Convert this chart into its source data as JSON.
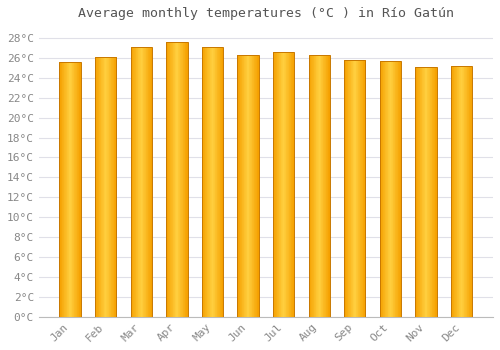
{
  "title": "Average monthly temperatures (°C ) in Río Gatún",
  "months": [
    "Jan",
    "Feb",
    "Mar",
    "Apr",
    "May",
    "Jun",
    "Jul",
    "Aug",
    "Sep",
    "Oct",
    "Nov",
    "Dec"
  ],
  "temperatures": [
    25.6,
    26.1,
    27.1,
    27.6,
    27.1,
    26.3,
    26.6,
    26.3,
    25.8,
    25.7,
    25.1,
    25.2
  ],
  "bar_color_center": "#FFD040",
  "bar_color_edge": "#F5A000",
  "bar_border_color": "#C87800",
  "ylim_min": 0,
  "ylim_max": 29,
  "ytick_step": 2,
  "background_color": "#ffffff",
  "grid_color": "#e0e0e8",
  "title_fontsize": 9.5,
  "tick_fontsize": 8,
  "tick_label_color": "#888888",
  "bar_width": 0.6
}
